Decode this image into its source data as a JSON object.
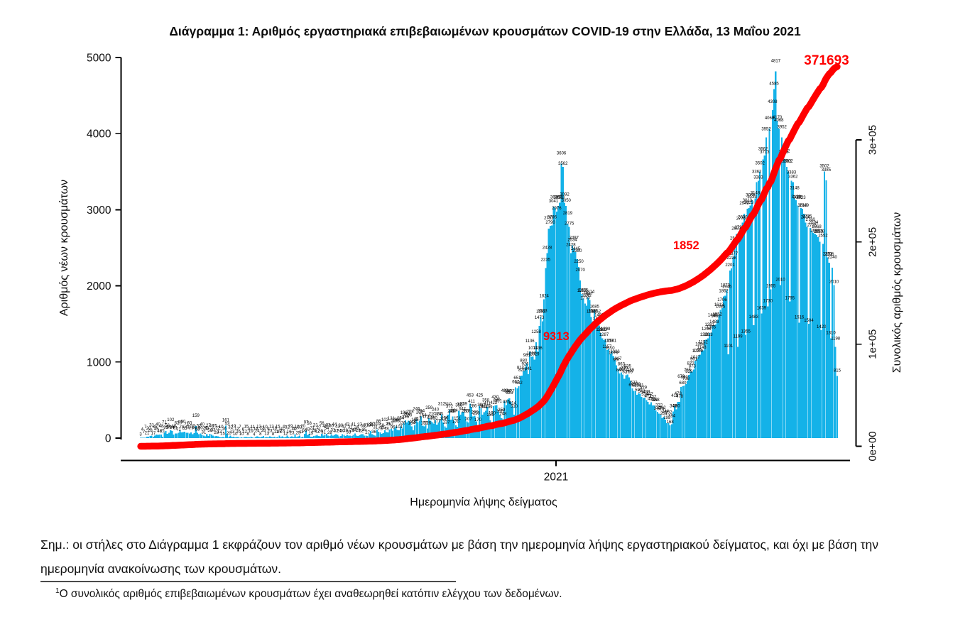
{
  "title": "Διάγραμμα 1: Αριθμός εργαστηριακά επιβεβαιωμένων κρουσμάτων COVID-19 στην Ελλάδα, 13 Μαΐου 2021",
  "notes": {
    "body": "Σημ.: οι στήλες στο Διάγραμμα 1 εκφράζουν τον αριθμό νέων κρουσμάτων με βάση την ημερομηνία λήψης εργαστηριακού δείγματος, και όχι με βάση την ημερομηνία ανακοίνωσης των κρουσμάτων.",
    "footnote_marker": "1",
    "footnote": "Ο συνολικός αριθμός επιβεβαιωμένων κρουσμάτων έχει αναθεωρηθεί κατόπιν ελέγχου των δεδομένων."
  },
  "chart_data": {
    "type": "bar",
    "title": "Διάγραμμα 1: Αριθμός εργαστηριακά επιβεβαιωμένων κρουσμάτων COVID-19 στην Ελλάδα, 13 Μαΐου 2021",
    "xlabel": "Ημερομηνία λήψης δείγματος",
    "x_axis": {
      "label": "Ημερομηνία λήψης δείγματος",
      "tick_labels": [
        "2021"
      ]
    },
    "y_left": {
      "label": "Αριθμός νέων κρουσμάτων",
      "ticks": [
        0,
        1000,
        2000,
        3000,
        4000,
        5000
      ],
      "range": [
        0,
        5000
      ]
    },
    "y_right": {
      "label": "Συνολικός αριθμός κρουσμάτων",
      "ticks": [
        {
          "label": "0e+00",
          "value": 0
        },
        {
          "label": "1e+05",
          "value": 100000
        },
        {
          "label": "2e+05",
          "value": 200000
        },
        {
          "label": "3e+05",
          "value": 300000
        }
      ],
      "range": [
        0,
        300000
      ]
    },
    "bar_series": {
      "name": "Αριθμός νέων κρουσμάτων (ημερήσια, με ετικέτα τιμής σε κάθε στήλη)",
      "values": [
        3,
        4,
        7,
        7,
        21,
        20,
        28,
        31,
        17,
        35,
        45,
        40,
        46,
        48,
        21,
        71,
        95,
        56,
        69,
        102,
        94,
        48,
        61,
        62,
        71,
        99,
        74,
        80,
        85,
        71,
        68,
        60,
        77,
        52,
        66,
        159,
        68,
        52,
        60,
        40,
        31,
        25,
        52,
        27,
        56,
        45,
        33,
        25,
        28,
        22,
        12,
        10,
        15,
        16,
        161,
        53,
        20,
        32,
        13,
        19,
        10,
        12,
        16,
        7,
        10,
        6,
        12,
        15,
        8,
        10,
        19,
        11,
        4,
        16,
        24,
        12,
        8,
        21,
        28,
        10,
        13,
        9,
        23,
        12,
        8,
        18,
        11,
        15,
        35,
        10,
        23,
        9,
        12,
        32,
        14,
        19,
        23,
        12,
        52,
        14,
        25,
        33,
        11,
        20,
        56,
        97,
        43,
        58,
        19,
        21,
        28,
        31,
        42,
        27,
        24,
        56,
        31,
        45,
        54,
        33,
        28,
        50,
        31,
        44,
        52,
        43,
        24,
        30,
        50,
        42,
        28,
        43,
        33,
        31,
        26,
        41,
        60,
        34,
        29,
        37,
        52,
        50,
        35,
        31,
        27,
        63,
        94,
        50,
        36,
        31,
        110,
        86,
        75,
        58,
        65,
        102,
        78,
        75,
        110,
        121,
        96,
        124,
        153,
        108,
        101,
        154,
        126,
        196,
        235,
        204,
        230,
        208,
        154,
        101,
        168,
        246,
        212,
        230,
        284,
        164,
        155,
        173,
        126,
        259,
        228,
        210,
        190,
        240,
        177,
        207,
        241,
        312,
        207,
        156,
        137,
        310,
        372,
        241,
        286,
        224,
        170,
        151,
        358,
        310,
        342,
        339,
        286,
        218,
        207,
        453,
        411,
        286,
        296,
        218,
        170,
        425,
        390,
        310,
        342,
        358,
        411,
        299,
        235,
        190,
        422,
        430,
        436,
        351,
        310,
        259,
        248,
        483,
        436,
        508,
        523,
        477,
        414,
        310,
        667,
        651,
        682,
        814,
        820,
        880,
        926,
        981,
        841,
        1136,
        1066,
        1074,
        1029,
        1258,
        1136,
        1473,
        1592,
        1533,
        1824,
        2235,
        2428,
        2753,
        2790,
        2796,
        3041,
        3025,
        2976,
        3050,
        3093,
        3606,
        3562,
        3092,
        3050,
        2819,
        2775,
        2428,
        2534,
        2497,
        2445,
        2350,
        2250,
        2070,
        1892,
        1835,
        1770,
        1741,
        1847,
        1814,
        1592,
        1533,
        1685,
        1552,
        1492,
        1480,
        1381,
        1313,
        1287,
        1298,
        1157,
        1169,
        1110,
        1141,
        1076,
        1026,
        957,
        907,
        849,
        863,
        836,
        779,
        827,
        835,
        799,
        755,
        653,
        622,
        620,
        570,
        590,
        581,
        542,
        529,
        533,
        499,
        477,
        442,
        472,
        427,
        429,
        363,
        347,
        322,
        313,
        262,
        281,
        244,
        195,
        202,
        168,
        184,
        348,
        419,
        380,
        478,
        478,
        673,
        680,
        692,
        708,
        755,
        829,
        870,
        873,
        901,
        1017,
        1035,
        1076,
        1094,
        1148,
        1152,
        1288,
        1298,
        1313,
        1381,
        1385,
        1480,
        1483,
        1492,
        1552,
        1613,
        1685,
        1706,
        1862,
        1870,
        1946,
        1101,
        2201,
        2228,
        2377,
        2516,
        2683,
        1199,
        2725,
        2776,
        2830,
        2949,
        1355,
        3013,
        3023,
        3055,
        3123,
        1483,
        3148,
        3362,
        3383,
        3502,
        1639,
        3662,
        3713,
        3952,
        1730,
        4068,
        1955,
        4308,
        4585,
        4817,
        4170,
        4068,
        2010,
        3952,
        3713,
        3662,
        3562,
        3502,
        1795,
        3383,
        3362,
        3148,
        3123,
        3055,
        1516,
        3023,
        3013,
        2949,
        2830,
        2776,
        1504,
        2760,
        2725,
        2694,
        2683,
        2668,
        2639,
        2578,
        1420,
        2552,
        3502,
        3385,
        2373,
        2306,
        1310,
        2240,
        2010,
        1198,
        815
      ]
    },
    "line_series": {
      "name": "Συνολικός αριθμός κρουσμάτων",
      "derivation": "cumulative",
      "end_value": 371693
    },
    "annotations": [
      {
        "text": "9313",
        "color": "#ff0000"
      },
      {
        "text": "1852",
        "color": "#ff0000"
      },
      {
        "text": "371693",
        "color": "#ff0000"
      }
    ],
    "legend": "none",
    "grid": "off",
    "colors": {
      "bar": "#14b2e8",
      "line": "#ff0000",
      "bar_label": "#000000",
      "axis": "#000000"
    }
  }
}
